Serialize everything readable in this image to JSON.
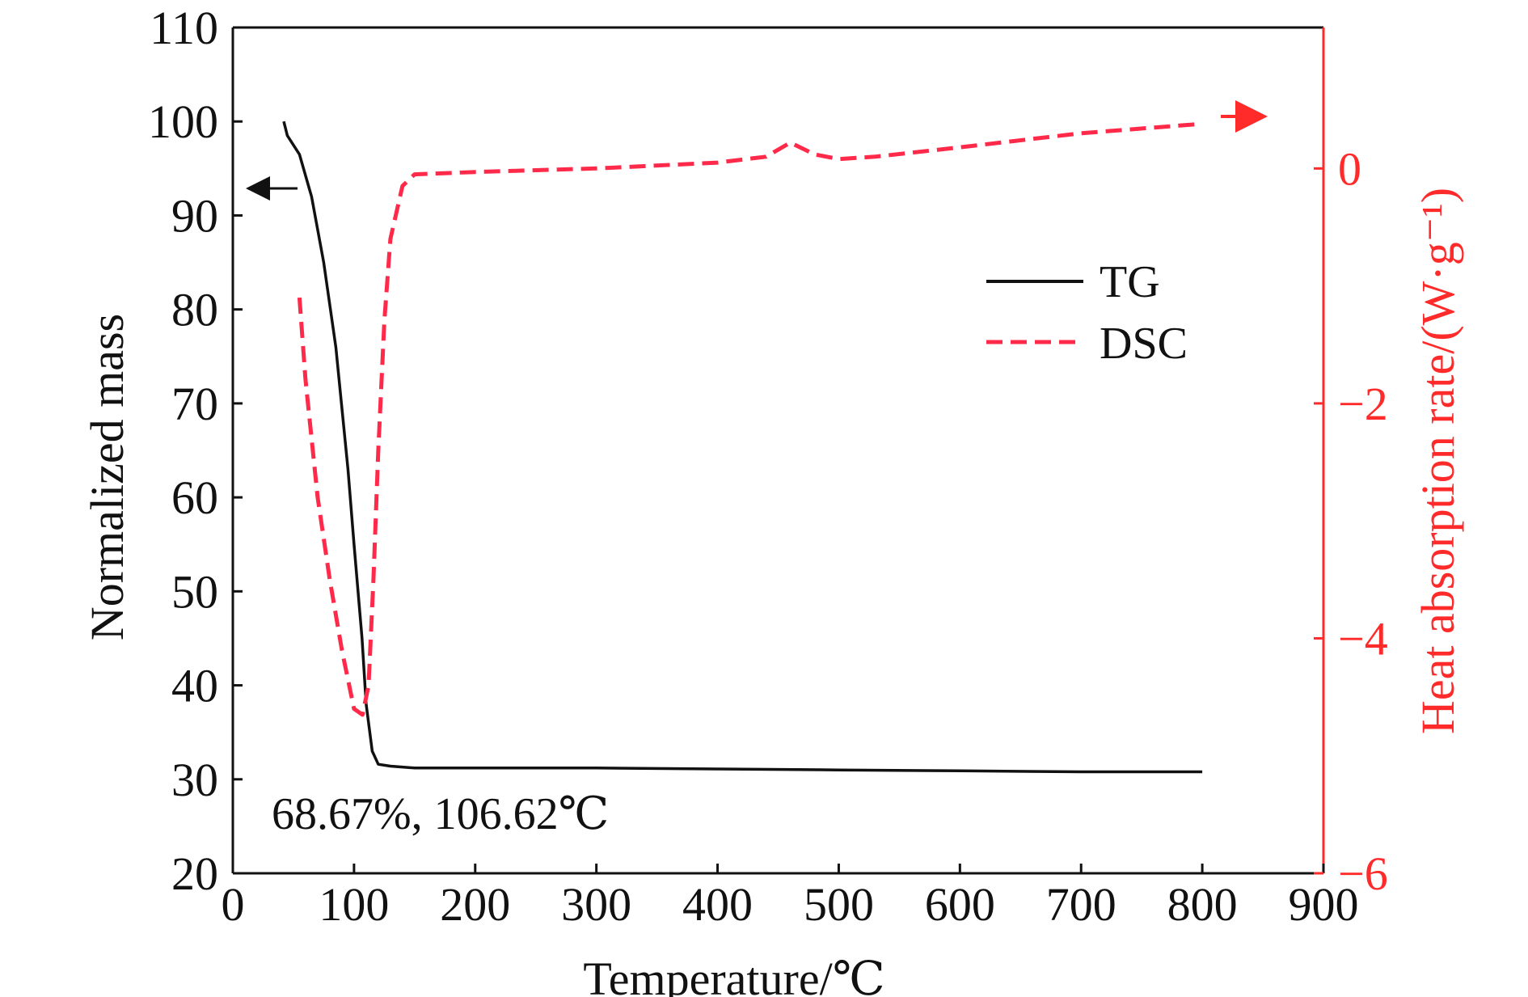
{
  "chart_data": {
    "type": "line",
    "xlabel": "Temperature/℃",
    "ylabel_left": "Normalized mass",
    "ylabel_right": "Heat absorption rate/(W·g⁻¹)",
    "xlim": [
      0,
      900
    ],
    "ylim_left": [
      20,
      110
    ],
    "ylim_right": [
      -6,
      1.2
    ],
    "x_ticks": [
      "0",
      "100",
      "200",
      "300",
      "400",
      "500",
      "600",
      "700",
      "800",
      "900"
    ],
    "y_left_ticks": [
      "20",
      "30",
      "40",
      "50",
      "60",
      "70",
      "80",
      "90",
      "100",
      "110"
    ],
    "y_right_ticks": [
      "−6",
      "−4",
      "−2",
      "0"
    ],
    "legend": {
      "position": "top-right",
      "entries": [
        "TG",
        "DSC"
      ]
    },
    "annotation": "68.67%, 106.62℃",
    "colors": {
      "tg": "#111111",
      "dsc": "#ff2a4a",
      "right_axis": "#ff2a2a",
      "axis": "#111111"
    },
    "series": [
      {
        "name": "TG",
        "axis": "left",
        "style": "solid",
        "x": [
          42,
          45,
          55,
          65,
          75,
          85,
          95,
          100,
          106.62,
          110,
          115,
          120,
          130,
          150,
          200,
          300,
          400,
          500,
          600,
          700,
          800
        ],
        "y": [
          100,
          98.5,
          96.5,
          92,
          85,
          76,
          63,
          55,
          45,
          38,
          33,
          31.6,
          31.4,
          31.2,
          31.2,
          31.2,
          31.1,
          31.0,
          30.9,
          30.8,
          30.8
        ]
      },
      {
        "name": "DSC",
        "axis": "right",
        "style": "dashed",
        "x": [
          55,
          60,
          70,
          80,
          90,
          100,
          107,
          112,
          116,
          120,
          125,
          130,
          140,
          150,
          200,
          300,
          400,
          440,
          460,
          480,
          500,
          530,
          600,
          700,
          800
        ],
        "y": [
          -1.1,
          -1.8,
          -2.8,
          -3.5,
          -4.1,
          -4.6,
          -4.65,
          -4.4,
          -3.5,
          -2.4,
          -1.3,
          -0.6,
          -0.15,
          -0.05,
          -0.03,
          0.0,
          0.05,
          0.1,
          0.22,
          0.12,
          0.08,
          0.1,
          0.18,
          0.3,
          0.38
        ]
      }
    ]
  }
}
